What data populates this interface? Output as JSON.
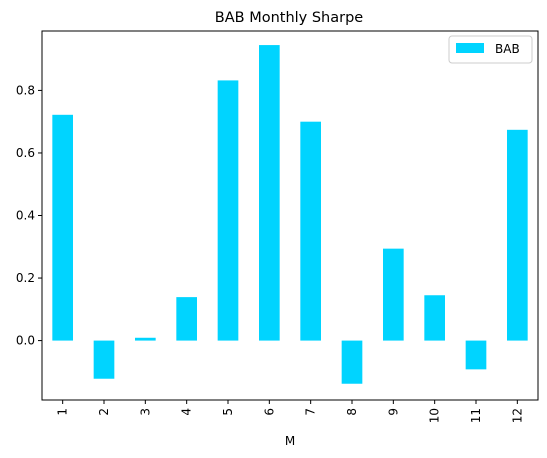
{
  "chart_data": {
    "type": "bar",
    "title": "BAB Monthly Sharpe",
    "xlabel": "M",
    "ylabel": "",
    "categories": [
      "1",
      "2",
      "3",
      "4",
      "5",
      "6",
      "7",
      "8",
      "9",
      "10",
      "11",
      "12"
    ],
    "series": [
      {
        "name": "BAB",
        "color": "#00d4ff",
        "values": [
          0.722,
          -0.122,
          0.009,
          0.139,
          0.832,
          0.945,
          0.7,
          -0.138,
          0.294,
          0.145,
          -0.092,
          0.674
        ]
      }
    ],
    "ylim": [
      -0.19,
      0.99
    ],
    "yticks": [
      "0.0",
      "0.2",
      "0.4",
      "0.6",
      "0.8"
    ],
    "ytick_values": [
      0.0,
      0.2,
      0.4,
      0.6,
      0.8
    ],
    "grid": false,
    "legend_position": "top-right",
    "x_tick_rotation": "vertical"
  }
}
